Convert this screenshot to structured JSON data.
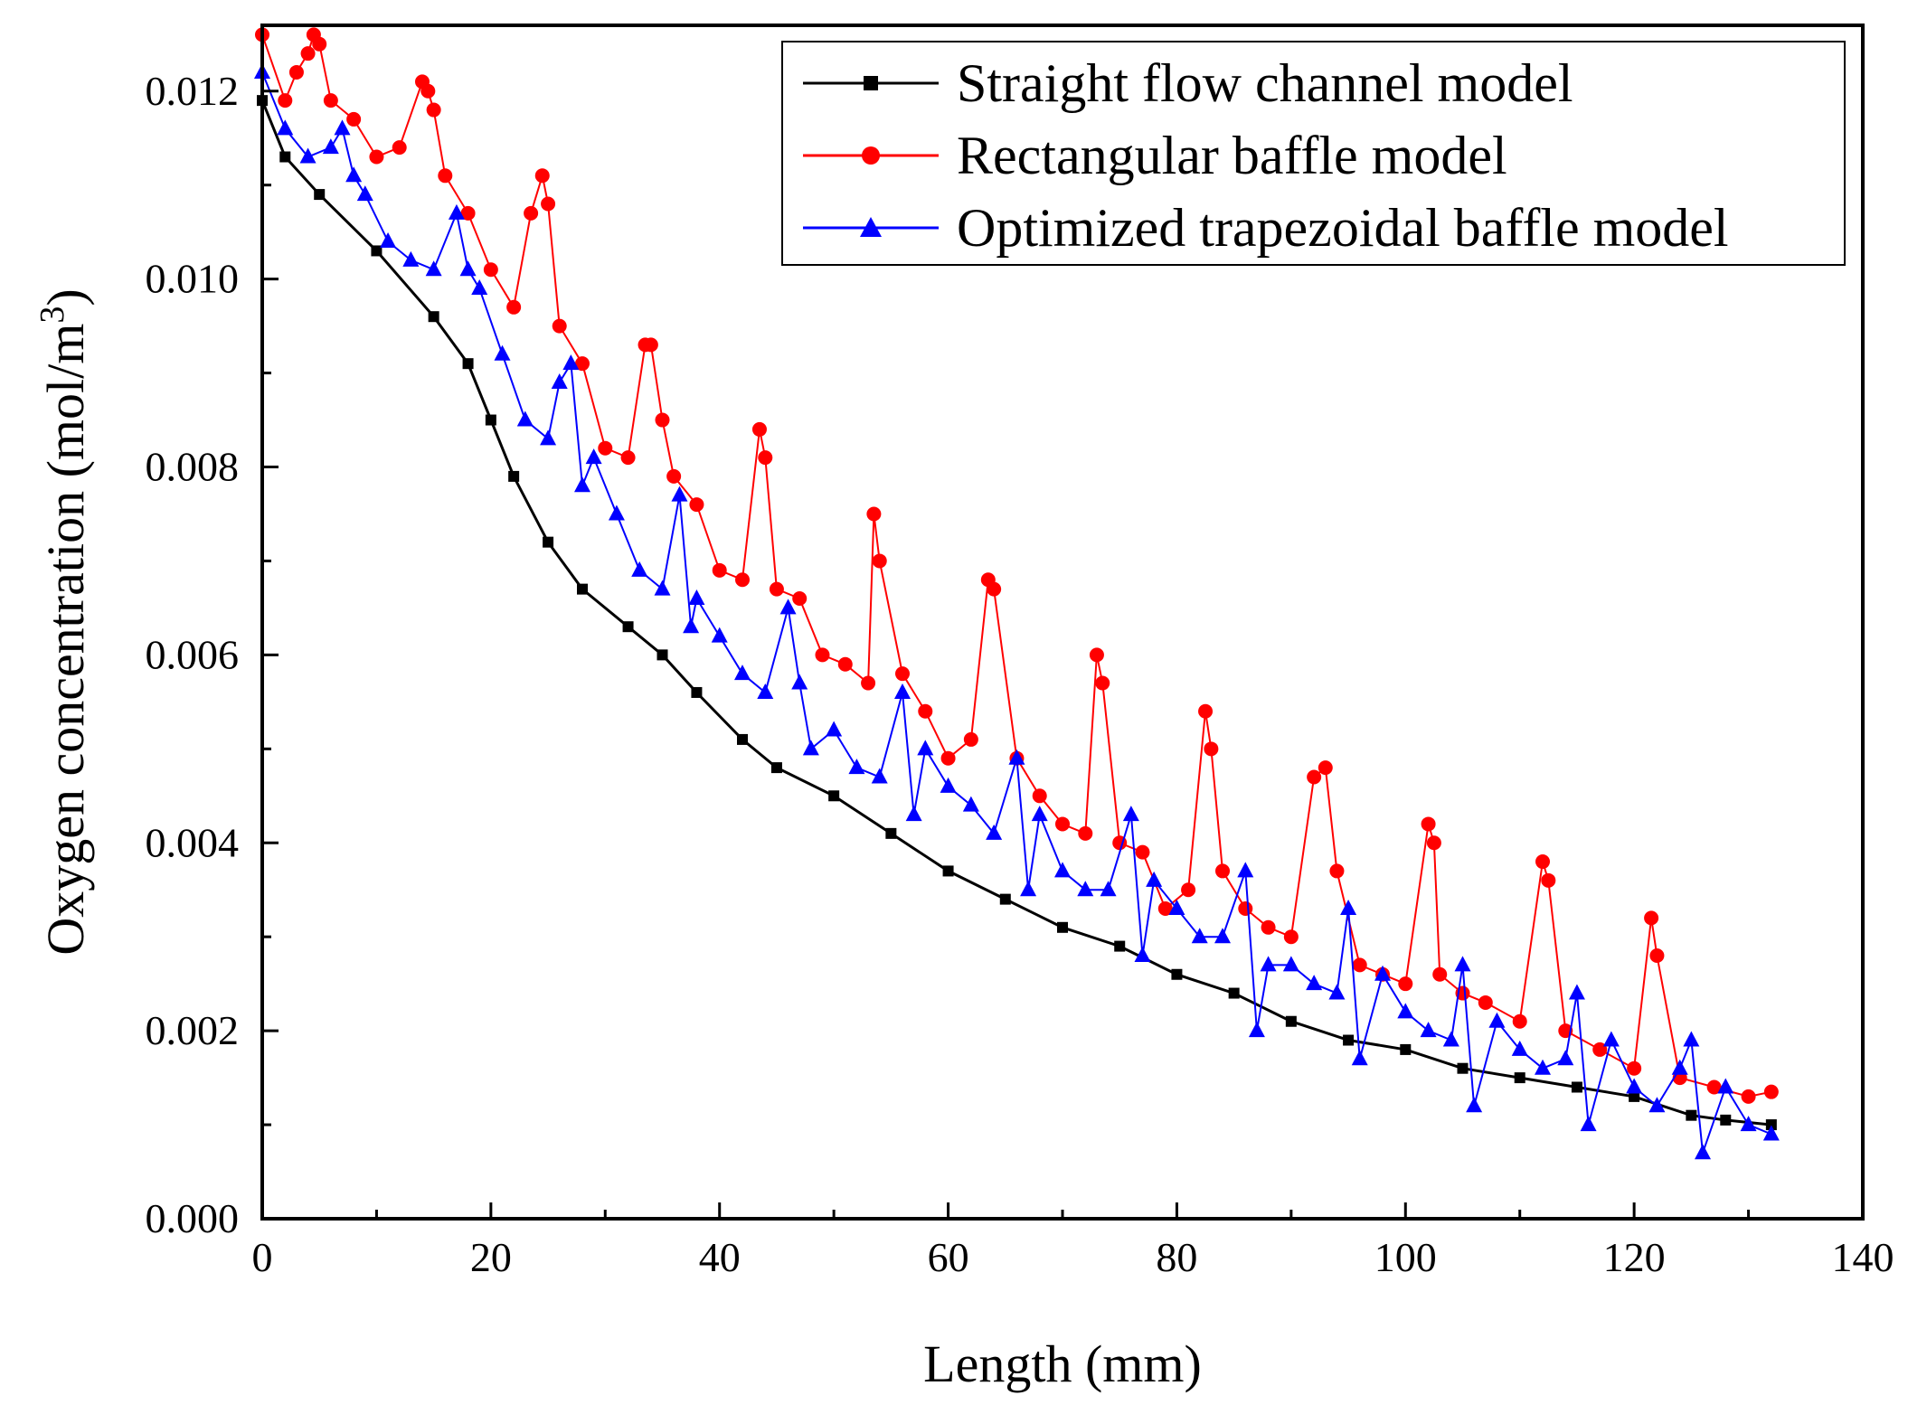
{
  "chart_data": {
    "type": "line",
    "title": "",
    "xlabel": "Length (mm)",
    "ylabel": "Oxygen concentration (mol/m3)",
    "ylabel_parts": {
      "main": "Oxygen concentration (mol/m",
      "sup": "3",
      "close": ")"
    },
    "xlim": [
      0,
      140
    ],
    "ylim": [
      0,
      0.0127
    ],
    "xticks": [
      0,
      20,
      40,
      60,
      80,
      100,
      120,
      140
    ],
    "xtick_labels": [
      "0",
      "20",
      "40",
      "60",
      "80",
      "100",
      "120",
      "140"
    ],
    "yticks": [
      0,
      0.002,
      0.004,
      0.006,
      0.008,
      0.01,
      0.012
    ],
    "ytick_labels": [
      "0.000",
      "0.002",
      "0.004",
      "0.006",
      "0.008",
      "0.010",
      "0.012"
    ],
    "legend_position": "top-right",
    "series": [
      {
        "name": "Straight flow channel model",
        "color": "#000000",
        "marker": "square",
        "x": [
          0,
          2,
          5,
          10,
          15,
          18,
          20,
          22,
          25,
          28,
          32,
          35,
          38,
          42,
          45,
          50,
          55,
          60,
          65,
          70,
          75,
          80,
          85,
          90,
          95,
          100,
          105,
          110,
          115,
          120,
          125,
          128,
          132
        ],
        "y": [
          0.0119,
          0.0113,
          0.0109,
          0.0103,
          0.0096,
          0.0091,
          0.0085,
          0.0079,
          0.0072,
          0.0067,
          0.0063,
          0.006,
          0.0056,
          0.0051,
          0.0048,
          0.0045,
          0.0041,
          0.0037,
          0.0034,
          0.0031,
          0.0029,
          0.0026,
          0.0024,
          0.0021,
          0.0019,
          0.0018,
          0.0016,
          0.0015,
          0.0014,
          0.0013,
          0.0011,
          0.00105,
          0.001
        ]
      },
      {
        "name": "Rectangular baffle model",
        "color": "#ff0000",
        "marker": "circle",
        "x": [
          0,
          2,
          3,
          4,
          4.5,
          5,
          6,
          8,
          10,
          12,
          14,
          14.5,
          15,
          16,
          18,
          20,
          22,
          23.5,
          24.5,
          25,
          26,
          28,
          30,
          32,
          33.5,
          34,
          35,
          36,
          38,
          40,
          42,
          43.5,
          44,
          45,
          47,
          49,
          51,
          53,
          53.5,
          54,
          56,
          58,
          60,
          62,
          63.5,
          64,
          66,
          68,
          70,
          72,
          73,
          73.5,
          75,
          77,
          79,
          81,
          82.5,
          83,
          84,
          86,
          88,
          90,
          92,
          93,
          94,
          96,
          98,
          100,
          102,
          102.5,
          103,
          105,
          107,
          110,
          112,
          112.5,
          114,
          117,
          120,
          121.5,
          122,
          124,
          127,
          130,
          132
        ],
        "y": [
          0.0126,
          0.0119,
          0.0122,
          0.0124,
          0.0126,
          0.0125,
          0.0119,
          0.0117,
          0.0113,
          0.0114,
          0.0121,
          0.012,
          0.0118,
          0.0111,
          0.0107,
          0.0101,
          0.0097,
          0.0107,
          0.0111,
          0.0108,
          0.0095,
          0.0091,
          0.0082,
          0.0081,
          0.0093,
          0.0093,
          0.0085,
          0.0079,
          0.0076,
          0.0069,
          0.0068,
          0.0084,
          0.0081,
          0.0067,
          0.0066,
          0.006,
          0.0059,
          0.0057,
          0.0075,
          0.007,
          0.0058,
          0.0054,
          0.0049,
          0.0051,
          0.0068,
          0.0067,
          0.0049,
          0.0045,
          0.0042,
          0.0041,
          0.006,
          0.0057,
          0.004,
          0.0039,
          0.0033,
          0.0035,
          0.0054,
          0.005,
          0.0037,
          0.0033,
          0.0031,
          0.003,
          0.0047,
          0.0048,
          0.0037,
          0.0027,
          0.0026,
          0.0025,
          0.0042,
          0.004,
          0.0026,
          0.0024,
          0.0023,
          0.0021,
          0.0038,
          0.0036,
          0.002,
          0.0018,
          0.0016,
          0.0032,
          0.0028,
          0.0015,
          0.0014,
          0.0013,
          0.00135
        ]
      },
      {
        "name": "Optimized trapezoidal baffle model",
        "color": "#0000ff",
        "marker": "triangle",
        "x": [
          0,
          2,
          4,
          6,
          7,
          8,
          9,
          11,
          13,
          15,
          17,
          18,
          19,
          21,
          23,
          25,
          26,
          27,
          28,
          29,
          31,
          33,
          35,
          36.5,
          37.5,
          38,
          40,
          42,
          44,
          46,
          47,
          48,
          50,
          52,
          54,
          56,
          57,
          58,
          60,
          62,
          64,
          66,
          67,
          68,
          70,
          72,
          74,
          76,
          77,
          78,
          80,
          82,
          84,
          86,
          87,
          88,
          90,
          92,
          94,
          95,
          96,
          98,
          100,
          102,
          104,
          105,
          106,
          108,
          110,
          112,
          114,
          115,
          116,
          118,
          120,
          122,
          124,
          125,
          126,
          128,
          130,
          132
        ],
        "y": [
          0.0122,
          0.0116,
          0.0113,
          0.0114,
          0.0116,
          0.0111,
          0.0109,
          0.0104,
          0.0102,
          0.0101,
          0.0107,
          0.0101,
          0.0099,
          0.0092,
          0.0085,
          0.0083,
          0.0089,
          0.0091,
          0.0078,
          0.0081,
          0.0075,
          0.0069,
          0.0067,
          0.0077,
          0.0063,
          0.0066,
          0.0062,
          0.0058,
          0.0056,
          0.0065,
          0.0057,
          0.005,
          0.0052,
          0.0048,
          0.0047,
          0.0056,
          0.0043,
          0.005,
          0.0046,
          0.0044,
          0.0041,
          0.0049,
          0.0035,
          0.0043,
          0.0037,
          0.0035,
          0.0035,
          0.0043,
          0.0028,
          0.0036,
          0.0033,
          0.003,
          0.003,
          0.0037,
          0.002,
          0.0027,
          0.0027,
          0.0025,
          0.0024,
          0.0033,
          0.0017,
          0.0026,
          0.0022,
          0.002,
          0.0019,
          0.0027,
          0.0012,
          0.0021,
          0.0018,
          0.0016,
          0.0017,
          0.0024,
          0.001,
          0.0019,
          0.0014,
          0.0012,
          0.0016,
          0.0019,
          0.0007,
          0.0014,
          0.001,
          0.0009
        ]
      }
    ]
  }
}
